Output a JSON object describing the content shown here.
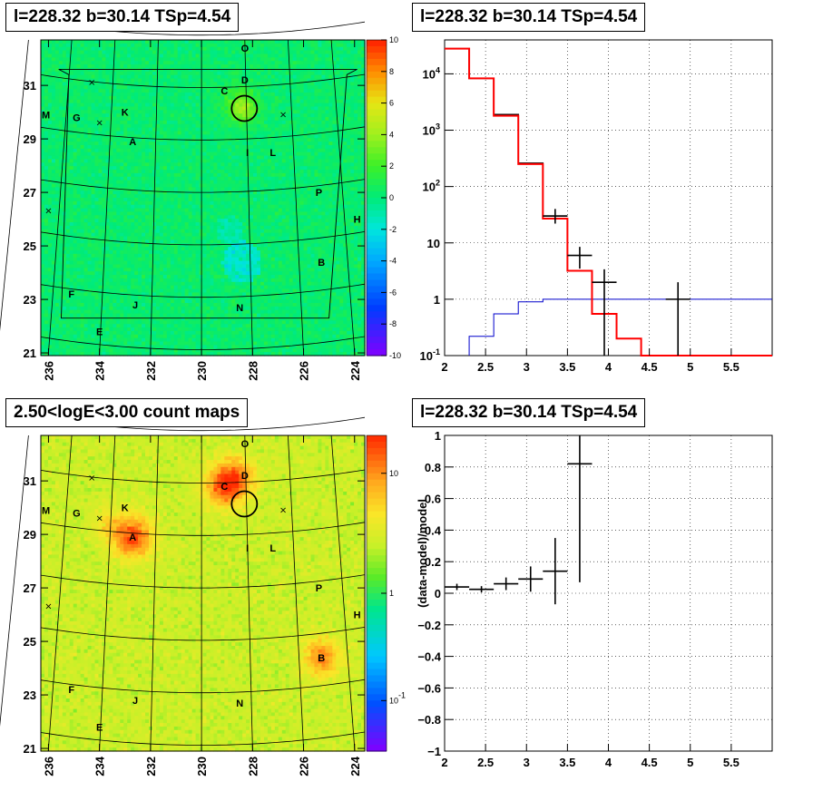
{
  "panels": {
    "tl_title": "l=228.32 b=30.14 TSp=4.54",
    "tr_title": "l=228.32 b=30.14 TSp=4.54",
    "bl_title": "2.50<logE<3.00 count maps",
    "br_title": "l=228.32 b=30.14 TSp=4.54"
  },
  "colors": {
    "data": "#000000",
    "model": "#ff0000",
    "background": "#0000cc"
  },
  "chart_data": [
    {
      "type": "heatmap",
      "title": "l=228.32 b=30.14 TSp=4.54",
      "xlim": [
        236.3,
        223.6
      ],
      "ylim": [
        20.9,
        32.7
      ],
      "x_ticks": [
        "236",
        "234",
        "232",
        "230",
        "228",
        "226",
        "224"
      ],
      "y_ticks": [
        "21",
        "23",
        "25",
        "27",
        "29",
        "31"
      ],
      "colorbar": {
        "range": [
          -10,
          10
        ],
        "ticks": [
          "10",
          "8",
          "6",
          "4",
          "2",
          "0",
          "-2",
          "-4",
          "-6",
          "-8",
          "-10"
        ]
      },
      "sources": [
        {
          "label": "O",
          "l": 228.3,
          "b": 32.4
        },
        {
          "label": "D",
          "l": 228.3,
          "b": 31.2
        },
        {
          "label": "C",
          "l": 229.1,
          "b": 30.8
        },
        {
          "label": "M",
          "l": 236.1,
          "b": 29.9
        },
        {
          "label": "G",
          "l": 234.9,
          "b": 29.8
        },
        {
          "label": "K",
          "l": 233.0,
          "b": 30.0
        },
        {
          "label": "A",
          "l": 232.7,
          "b": 28.9
        },
        {
          "label": "I",
          "l": 228.2,
          "b": 28.5
        },
        {
          "label": "L",
          "l": 227.2,
          "b": 28.5
        },
        {
          "label": "P",
          "l": 225.4,
          "b": 27.0
        },
        {
          "label": "H",
          "l": 223.9,
          "b": 26.0
        },
        {
          "label": "B",
          "l": 225.3,
          "b": 24.4
        },
        {
          "label": "F",
          "l": 235.1,
          "b": 23.2
        },
        {
          "label": "J",
          "l": 232.6,
          "b": 22.8
        },
        {
          "label": "N",
          "l": 228.5,
          "b": 22.7
        },
        {
          "label": "E",
          "l": 234.0,
          "b": 21.8
        }
      ],
      "circle": {
        "l": 228.32,
        "b": 30.14
      }
    },
    {
      "type": "line",
      "title": "l=228.32 b=30.14 TSp=4.54",
      "xlim": [
        2,
        6
      ],
      "ylim": [
        0.1,
        40000
      ],
      "y_scale": "log",
      "x_ticks": [
        "2",
        "2.5",
        "3",
        "3.5",
        "4",
        "4.5",
        "5",
        "5.5"
      ],
      "y_ticks": [
        "10^-1",
        "1",
        "10",
        "10^2",
        "10^3",
        "10^4"
      ],
      "grid": true,
      "series": [
        {
          "role": "data",
          "style": "points",
          "x": [
            2.15,
            2.45,
            2.75,
            3.05,
            3.35,
            3.65,
            3.95,
            4.85
          ],
          "y": [
            28000,
            8300,
            1900,
            260,
            30,
            6,
            2,
            1.0
          ]
        },
        {
          "role": "model",
          "style": "step",
          "x": [
            2.0,
            2.3,
            2.6,
            2.9,
            3.2,
            3.5,
            3.8,
            4.1,
            4.4
          ],
          "y": [
            28000,
            8300,
            1800,
            250,
            27,
            3.2,
            0.55,
            0.2,
            0.1
          ]
        },
        {
          "role": "background",
          "style": "step",
          "x": [
            2.3,
            2.6,
            2.9,
            3.2,
            3.5
          ],
          "y": [
            0.22,
            0.55,
            0.9,
            1.0,
            1.0
          ]
        }
      ]
    },
    {
      "type": "heatmap",
      "title": "2.50<logE<3.00 count maps",
      "xlim": [
        236.3,
        223.6
      ],
      "ylim": [
        20.9,
        32.7
      ],
      "x_ticks": [
        "236",
        "234",
        "232",
        "230",
        "228",
        "226",
        "224"
      ],
      "y_ticks": [
        "21",
        "23",
        "25",
        "27",
        "29",
        "31"
      ],
      "colorbar": {
        "scale": "log",
        "ticks": [
          "10",
          "1",
          "10^-1"
        ]
      }
    },
    {
      "type": "scatter",
      "title": "l=228.32 b=30.14 TSp=4.54",
      "ylabel": "(data-model)/model",
      "xlim": [
        2,
        6
      ],
      "ylim": [
        -1,
        1
      ],
      "x_ticks": [
        "2",
        "2.5",
        "3",
        "3.5",
        "4",
        "4.5",
        "5",
        "5.5"
      ],
      "y_ticks": [
        "1",
        "0.8",
        "0.6",
        "0.4",
        "0.2",
        "0",
        "-0.2",
        "-0.4",
        "-0.6",
        "-0.8",
        "-1"
      ],
      "grid": true,
      "points": [
        {
          "x": 2.15,
          "y": 0.04,
          "err": 0.02
        },
        {
          "x": 2.45,
          "y": 0.025,
          "err": 0.02
        },
        {
          "x": 2.75,
          "y": 0.06,
          "err": 0.04
        },
        {
          "x": 3.05,
          "y": 0.09,
          "err": 0.08
        },
        {
          "x": 3.35,
          "y": 0.14,
          "err": 0.21
        },
        {
          "x": 3.65,
          "y": 0.82,
          "err": 0.75
        }
      ]
    }
  ]
}
